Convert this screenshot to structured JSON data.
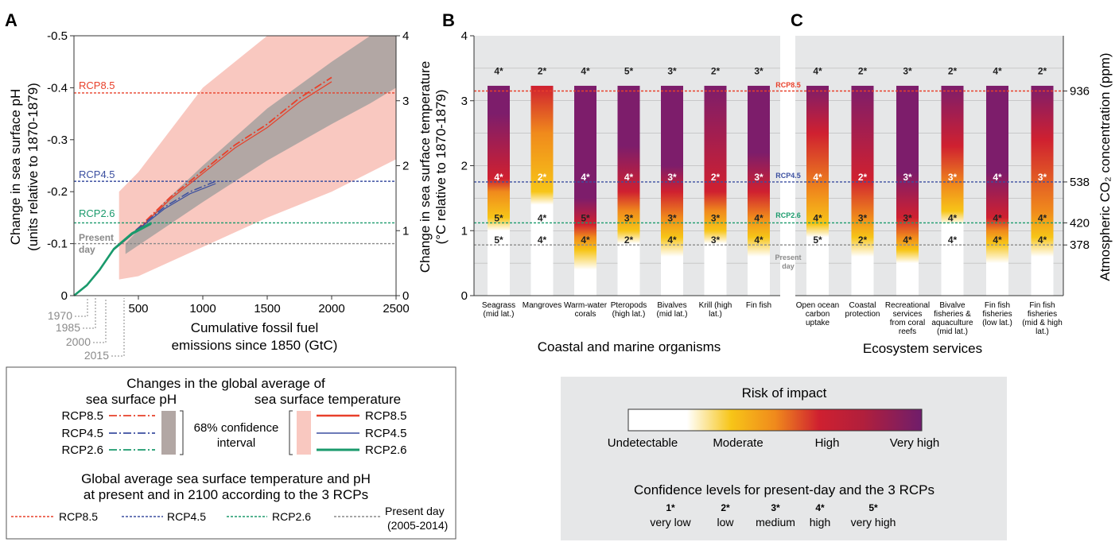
{
  "panels": {
    "a": "A",
    "b": "B",
    "c": "C"
  },
  "panel_a": {
    "ylabel_left": [
      "Change in sea surface pH",
      "(units relative to 1870-1879)"
    ],
    "ylabel_right": [
      "Change in sea surface temperature",
      "(°C  relative to 1870-1879)"
    ],
    "xlabel": [
      "Cumulative fossil fuel",
      "emissions since 1850 (GtC)"
    ],
    "left_ticks": [
      "-0.5",
      "-0.4",
      "-0.3",
      "-0.2",
      "-0.1",
      "0"
    ],
    "right_ticks": [
      "4",
      "3",
      "2",
      "1",
      "0"
    ],
    "x_ticks": [
      "500",
      "1000",
      "1500",
      "2000",
      "2500"
    ],
    "year_labels": [
      "1970",
      "1985",
      "2000",
      "2015"
    ],
    "rcp_labels": {
      "rcp85": "RCP8.5",
      "rcp45": "RCP4.5",
      "rcp26": "RCP2.6",
      "present": "Present",
      "present2": "day"
    }
  },
  "panel_bc": {
    "y_ticks": [
      "4",
      "3",
      "2",
      "1",
      "0"
    ],
    "right_ticks": [
      "936",
      "538",
      "420",
      "378"
    ],
    "right_label": "Atmospheric CO₂ concentration (ppm)",
    "line_labels": {
      "rcp85": "RCP8.5",
      "rcp45": "RCP4.5",
      "rcp26": "RCP2.6",
      "present": "Present",
      "present2": "day"
    },
    "group_b": "Coastal and marine organisms",
    "group_c": "Ecosystem services"
  },
  "legend": {
    "title": "Changes in the global average of",
    "ph_header": "sea surface pH",
    "temp_header": "sea surface temperature",
    "rcps": [
      "RCP8.5",
      "RCP4.5",
      "RCP2.6"
    ],
    "ci": [
      "68% confidence",
      "interval"
    ],
    "present_title": [
      "Global average sea surface temperature and pH",
      "at present and in 2100 according to the 3 RCPs"
    ],
    "lines": [
      "RCP8.5",
      "RCP4.5",
      "RCP2.6",
      "Present day",
      "(2005-2014)"
    ]
  },
  "risk_legend": {
    "title": "Risk of impact",
    "levels": [
      "Undetectable",
      "Moderate",
      "High",
      "Very high"
    ],
    "conf_title": "Confidence levels for present-day and the 3 RCPs",
    "conf_stars": [
      "1*",
      "2*",
      "3*",
      "4*",
      "5*"
    ],
    "conf_words": [
      "very low",
      "low",
      "medium",
      "high",
      "very high"
    ]
  },
  "colors": {
    "rcp85": "#e8402a",
    "rcp45": "#3b4fa0",
    "rcp26": "#1a9a6c",
    "present": "#8a8a8a",
    "undetectable": "#ffffff",
    "moderate": "#f7c518",
    "high": "#cf2030",
    "very_high": "#7d1d6b",
    "ph_band": "#b2a7a4",
    "temp_band": "#f9c8c0"
  },
  "chart_data": [
    {
      "type": "line",
      "title": "",
      "xlabel": "Cumulative fossil fuel emissions since 1850 (GtC)",
      "ylabel": "Change in sea surface pH (units relative to 1870-1879)",
      "ylabel_right": "Change in sea surface temperature (°C relative to 1870-1879)",
      "xlim": [
        0,
        2500
      ],
      "ylim": [
        0,
        -0.5
      ],
      "ylim_right": [
        0,
        4
      ],
      "series": [
        {
          "name": "RCP8.5",
          "x": [
            310,
            500,
            750,
            1000,
            1250,
            1500,
            1750,
            2000
          ],
          "y": [
            -0.09,
            -0.13,
            -0.19,
            -0.24,
            -0.29,
            -0.33,
            -0.38,
            -0.42
          ]
        },
        {
          "name": "RCP4.5",
          "x": [
            310,
            500,
            700,
            900,
            1100
          ],
          "y": [
            -0.09,
            -0.13,
            -0.17,
            -0.2,
            -0.22
          ]
        },
        {
          "name": "RCP2.6",
          "x": [
            0,
            100,
            200,
            310,
            450,
            600
          ],
          "y": [
            0,
            -0.02,
            -0.05,
            -0.09,
            -0.12,
            -0.14
          ]
        }
      ],
      "reference_lines": [
        {
          "name": "RCP8.5",
          "ph": -0.39,
          "temp": 3.15
        },
        {
          "name": "RCP4.5",
          "ph": -0.22,
          "temp": 1.75
        },
        {
          "name": "RCP2.6",
          "ph": -0.14,
          "temp": 1.12
        },
        {
          "name": "Present day",
          "ph": -0.1,
          "temp": 0.78
        }
      ]
    },
    {
      "type": "heatmap",
      "title": "Coastal and marine organisms",
      "ylabel": "Change in sea surface temperature (°C relative to 1870-1879)",
      "ylim": [
        0,
        4
      ],
      "categories": [
        "Seagrass (mid lat.)",
        "Mangroves",
        "Warm-water corals",
        "Pteropods (high lat.)",
        "Bivalves (mid lat.)",
        "Krill (high lat.)",
        "Fin fish"
      ],
      "confidence": [
        {
          "present": "5*",
          "rcp26": "5*",
          "rcp45": "4*",
          "rcp85": "4*"
        },
        {
          "present": "4*",
          "rcp26": "4*",
          "rcp45": "2*",
          "rcp85": "2*"
        },
        {
          "present": "4*",
          "rcp26": "5*",
          "rcp45": "4*",
          "rcp85": "4*"
        },
        {
          "present": "2*",
          "rcp26": "3*",
          "rcp45": "4*",
          "rcp85": "5*"
        },
        {
          "present": "4*",
          "rcp26": "3*",
          "rcp45": "3*",
          "rcp85": "3*"
        },
        {
          "present": "3*",
          "rcp26": "3*",
          "rcp45": "2*",
          "rcp85": "2*"
        },
        {
          "present": "4*",
          "rcp26": "4*",
          "rcp45": "3*",
          "rcp85": "3*"
        }
      ]
    },
    {
      "type": "heatmap",
      "title": "Ecosystem services",
      "ylabel_right": "Atmospheric CO₂ concentration (ppm)",
      "right_ticks": [
        936,
        538,
        420,
        378
      ],
      "categories": [
        "Open ocean carbon uptake",
        "Coastal protection",
        "Recreational services from coral reefs",
        "Bivalve fisheries & aquaculture (mid lat.)",
        "Fin fish fisheries (low lat.)",
        "Fin fish fisheries (mid & high lat.)"
      ],
      "confidence": [
        {
          "present": "5*",
          "rcp26": "4*",
          "rcp45": "4*",
          "rcp85": "4*"
        },
        {
          "present": "2*",
          "rcp26": "3*",
          "rcp45": "2*",
          "rcp85": "2*"
        },
        {
          "present": "4*",
          "rcp26": "3*",
          "rcp45": "3*",
          "rcp85": "3*"
        },
        {
          "present": "4*",
          "rcp26": "4*",
          "rcp45": "3*",
          "rcp85": "2*"
        },
        {
          "present": "4*",
          "rcp26": "4*",
          "rcp45": "4*",
          "rcp85": "4*"
        },
        {
          "present": "4*",
          "rcp26": "4*",
          "rcp45": "3*",
          "rcp85": "2*"
        }
      ]
    }
  ]
}
